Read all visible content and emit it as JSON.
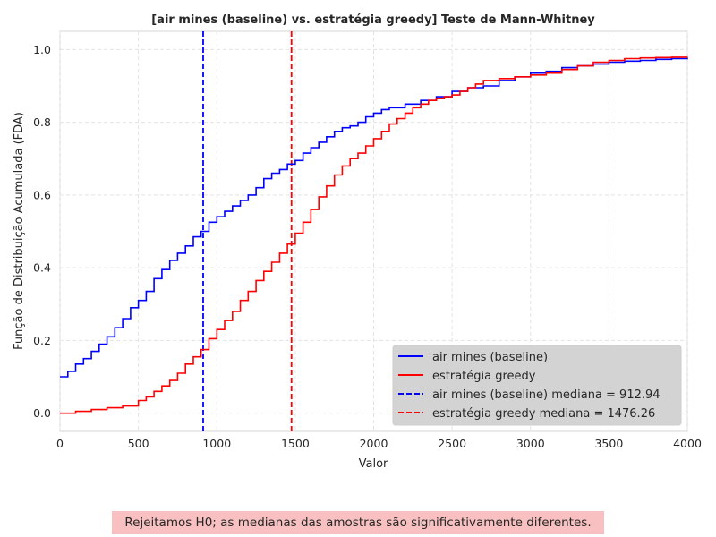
{
  "chart_data": {
    "type": "line",
    "title": "[air mines (baseline) vs. estratégia greedy] Teste de Mann-Whitney",
    "xlabel": "Valor",
    "ylabel": "Função de Distribuição Acumulada (FDA)",
    "xlim": [
      0,
      4000
    ],
    "ylim": [
      -0.05,
      1.05
    ],
    "xticks": [
      0,
      500,
      1000,
      1500,
      2000,
      2500,
      3000,
      3500,
      4000
    ],
    "yticks": [
      0.0,
      0.2,
      0.4,
      0.6,
      0.8,
      1.0
    ],
    "xtick_labels": [
      "0",
      "500",
      "1000",
      "1500",
      "2000",
      "2500",
      "3000",
      "3500",
      "4000"
    ],
    "ytick_labels": [
      "0.0",
      "0.2",
      "0.4",
      "0.6",
      "0.8",
      "1.0"
    ],
    "grid": true,
    "legend_position": "lower-right",
    "series": [
      {
        "name": "air mines (baseline)",
        "color": "#0000ff",
        "style": "solid",
        "x": [
          0,
          50,
          100,
          150,
          200,
          250,
          300,
          350,
          400,
          450,
          500,
          550,
          600,
          650,
          700,
          750,
          800,
          850,
          900,
          950,
          1000,
          1050,
          1100,
          1150,
          1200,
          1250,
          1300,
          1350,
          1400,
          1450,
          1500,
          1550,
          1600,
          1650,
          1700,
          1750,
          1800,
          1850,
          1900,
          1950,
          2000,
          2050,
          2100,
          2200,
          2300,
          2400,
          2500,
          2600,
          2700,
          2800,
          2900,
          3000,
          3100,
          3200,
          3300,
          3400,
          3500,
          3600,
          3700,
          3800,
          3900,
          4000
        ],
        "y": [
          0.1,
          0.115,
          0.135,
          0.15,
          0.17,
          0.19,
          0.21,
          0.235,
          0.26,
          0.29,
          0.31,
          0.335,
          0.37,
          0.395,
          0.42,
          0.44,
          0.46,
          0.485,
          0.5,
          0.525,
          0.54,
          0.555,
          0.57,
          0.585,
          0.6,
          0.62,
          0.645,
          0.66,
          0.67,
          0.685,
          0.695,
          0.715,
          0.73,
          0.745,
          0.76,
          0.775,
          0.785,
          0.79,
          0.8,
          0.815,
          0.825,
          0.835,
          0.84,
          0.85,
          0.86,
          0.87,
          0.885,
          0.895,
          0.9,
          0.915,
          0.925,
          0.935,
          0.94,
          0.95,
          0.955,
          0.96,
          0.965,
          0.968,
          0.97,
          0.973,
          0.975,
          0.977
        ]
      },
      {
        "name": "estratégia greedy",
        "color": "#ff0000",
        "style": "solid",
        "x": [
          0,
          100,
          200,
          300,
          400,
          500,
          550,
          600,
          650,
          700,
          750,
          800,
          850,
          900,
          950,
          1000,
          1050,
          1100,
          1150,
          1200,
          1250,
          1300,
          1350,
          1400,
          1450,
          1500,
          1550,
          1600,
          1650,
          1700,
          1750,
          1800,
          1850,
          1900,
          1950,
          2000,
          2050,
          2100,
          2150,
          2200,
          2250,
          2300,
          2350,
          2400,
          2450,
          2500,
          2550,
          2600,
          2650,
          2700,
          2800,
          2900,
          3000,
          3100,
          3200,
          3300,
          3400,
          3500,
          3600,
          3700,
          3800,
          3900,
          4000
        ],
        "y": [
          0.0,
          0.005,
          0.01,
          0.015,
          0.02,
          0.035,
          0.045,
          0.06,
          0.075,
          0.09,
          0.11,
          0.135,
          0.155,
          0.175,
          0.205,
          0.23,
          0.255,
          0.28,
          0.31,
          0.335,
          0.365,
          0.39,
          0.415,
          0.44,
          0.465,
          0.495,
          0.525,
          0.56,
          0.595,
          0.625,
          0.655,
          0.68,
          0.7,
          0.715,
          0.735,
          0.755,
          0.775,
          0.795,
          0.81,
          0.825,
          0.84,
          0.85,
          0.86,
          0.865,
          0.87,
          0.875,
          0.885,
          0.895,
          0.905,
          0.915,
          0.92,
          0.925,
          0.93,
          0.935,
          0.945,
          0.955,
          0.965,
          0.97,
          0.975,
          0.977,
          0.978,
          0.979,
          0.98
        ]
      }
    ],
    "medians": [
      {
        "name": "air mines (baseline) mediana = 912.94",
        "value": 912.94,
        "color": "#0000ff",
        "style": "dashed"
      },
      {
        "name": "estratégia greedy mediana = 1476.26",
        "value": 1476.26,
        "color": "#ff0000",
        "style": "dashed"
      }
    ]
  },
  "result_note": "Rejeitamos H0; as medianas das amostras são significativamente diferentes."
}
